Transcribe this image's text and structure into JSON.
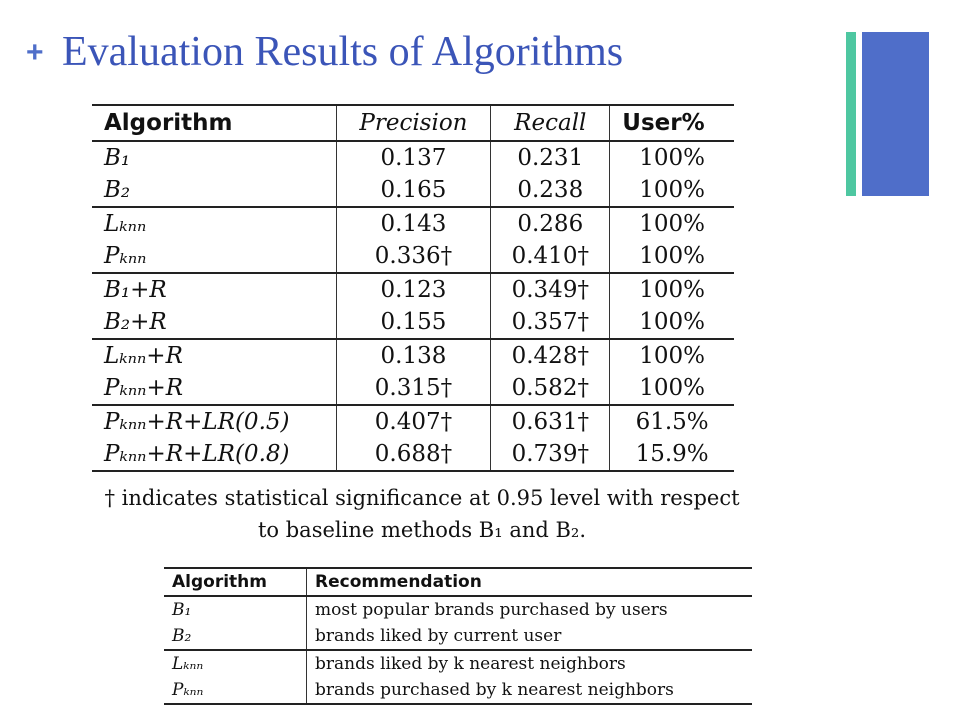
{
  "header": {
    "plus": "+",
    "title": "Evaluation Results of Algorithms"
  },
  "results_table": {
    "columns": [
      "Algorithm",
      "Precision",
      "Recall",
      "User%"
    ],
    "rows": [
      {
        "algorithm": "B₁",
        "precision": "0.137",
        "recall": "0.231",
        "user": "100%"
      },
      {
        "algorithm": "B₂",
        "precision": "0.165",
        "recall": "0.238",
        "user": "100%"
      },
      {
        "algorithm": "Lₖₙₙ",
        "precision": "0.143",
        "recall": "0.286",
        "user": "100%"
      },
      {
        "algorithm": "Pₖₙₙ",
        "precision": "0.336†",
        "recall": "0.410†",
        "user": "100%"
      },
      {
        "algorithm": "B₁+R",
        "precision": "0.123",
        "recall": "0.349†",
        "user": "100%"
      },
      {
        "algorithm": "B₂+R",
        "precision": "0.155",
        "recall": "0.357†",
        "user": "100%"
      },
      {
        "algorithm": "Lₖₙₙ+R",
        "precision": "0.138",
        "recall": "0.428†",
        "user": "100%"
      },
      {
        "algorithm": "Pₖₙₙ+R",
        "precision": "0.315†",
        "recall": "0.582†",
        "user": "100%"
      },
      {
        "algorithm": "Pₖₙₙ+R+LR(0.5)",
        "precision": "0.407†",
        "recall": "0.631†",
        "user": "61.5%"
      },
      {
        "algorithm": "Pₖₙₙ+R+LR(0.8)",
        "precision": "0.688†",
        "recall": "0.739†",
        "user": "15.9%"
      }
    ]
  },
  "significance_note": {
    "line1": "† indicates statistical significance at 0.95 level with respect",
    "line2": "to baseline methods B₁ and B₂."
  },
  "recommendation_table": {
    "columns": [
      "Algorithm",
      "Recommendation"
    ],
    "rows": [
      {
        "algorithm": "B₁",
        "recommendation": "most popular brands purchased by users"
      },
      {
        "algorithm": "B₂",
        "recommendation": "brands liked by current user"
      },
      {
        "algorithm": "Lₖₙₙ",
        "recommendation": "brands liked by k nearest neighbors"
      },
      {
        "algorithm": "Pₖₙₙ",
        "recommendation": "brands purchased by k nearest neighbors"
      }
    ]
  },
  "colors": {
    "title": "#3b55b8",
    "accent_blue": "#4f6ec9",
    "accent_green": "#4ec7a1"
  }
}
